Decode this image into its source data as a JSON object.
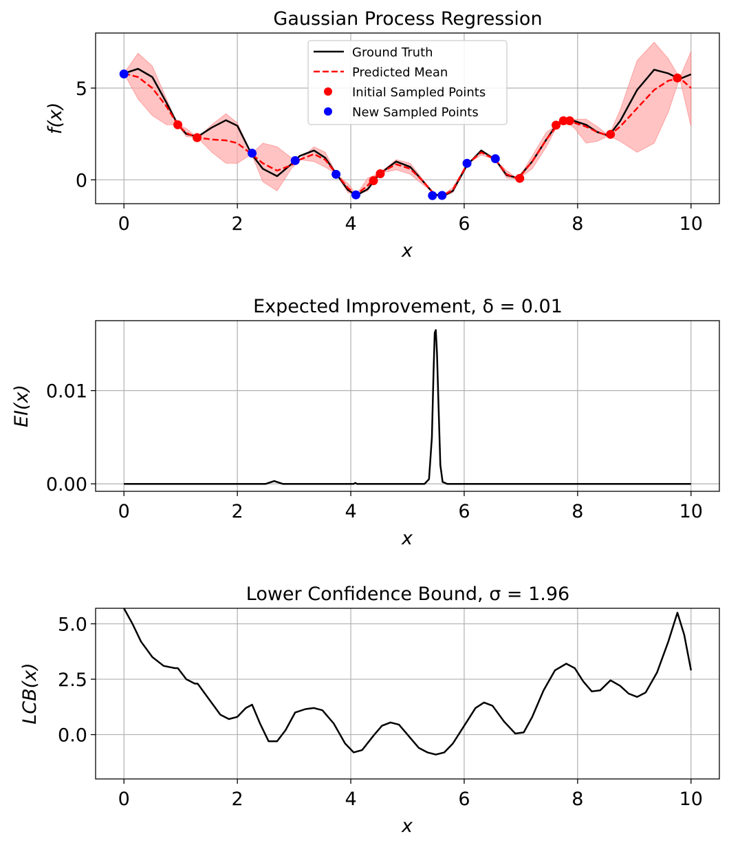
{
  "figure": {
    "panels": [
      {
        "title": "Gaussian Process Regression",
        "xlabel": "x",
        "ylabel": "f(x)",
        "xlim": [
          -0.5,
          10.5
        ],
        "ylim": [
          -1.3,
          8.0
        ],
        "xticks": [
          0,
          2,
          4,
          6,
          8,
          10
        ],
        "xtick_labels": [
          "0",
          "2",
          "4",
          "6",
          "8",
          "10"
        ],
        "yticks": [
          0,
          5
        ],
        "ytick_labels": [
          "0",
          "5"
        ]
      },
      {
        "title": "Expected Improvement, δ = 0.01",
        "xlabel": "x",
        "ylabel": "EI(x)",
        "xlim": [
          -0.5,
          10.5
        ],
        "ylim": [
          -0.0008,
          0.0175
        ],
        "xticks": [
          0,
          2,
          4,
          6,
          8,
          10
        ],
        "xtick_labels": [
          "0",
          "2",
          "4",
          "6",
          "8",
          "10"
        ],
        "yticks": [
          0.0,
          0.01
        ],
        "ytick_labels": [
          "0.00",
          "0.01"
        ]
      },
      {
        "title": "Lower Confidence Bound, σ = 1.96",
        "xlabel": "x",
        "ylabel": "LCB(x)",
        "xlim": [
          -0.5,
          10.5
        ],
        "ylim": [
          -2.0,
          5.7
        ],
        "xticks": [
          0,
          2,
          4,
          6,
          8,
          10
        ],
        "xtick_labels": [
          "0",
          "2",
          "4",
          "6",
          "8",
          "10"
        ],
        "yticks": [
          0.0,
          2.5,
          5.0
        ],
        "ytick_labels": [
          "0.0",
          "2.5",
          "5.0"
        ]
      }
    ],
    "legend": {
      "placement": "upper-center",
      "entries": [
        "Ground Truth",
        "Predicted Mean",
        "Initial Sampled Points",
        "New Sampled Points"
      ]
    },
    "colors": {
      "ground_truth": "#000000",
      "predicted_mean": "#ff0000",
      "confidence_band": "#ffaaaa",
      "initial_points": "#ff0000",
      "new_points": "#0000ff",
      "grid": "#b0b0b0"
    }
  },
  "chart_data": [
    {
      "type": "line",
      "title": "Gaussian Process Regression",
      "xlabel": "x",
      "ylabel": "f(x)",
      "xlim": [
        -0.5,
        10.5
      ],
      "ylim": [
        -1.3,
        8.0
      ],
      "grid": true,
      "legend": "upper-center",
      "series": [
        {
          "name": "Ground Truth",
          "style": "solid",
          "x": [
            0,
            0.25,
            0.5,
            0.75,
            0.95,
            1.1,
            1.3,
            1.55,
            1.8,
            2.0,
            2.25,
            2.45,
            2.7,
            2.95,
            3.1,
            3.35,
            3.55,
            3.75,
            3.95,
            4.1,
            4.3,
            4.5,
            4.8,
            5.05,
            5.25,
            5.45,
            5.6,
            5.8,
            6.05,
            6.3,
            6.55,
            6.75,
            6.95,
            7.2,
            7.45,
            7.65,
            7.8,
            7.95,
            8.15,
            8.35,
            8.55,
            8.75,
            9.05,
            9.35,
            9.6,
            9.8,
            10.0
          ],
          "values": [
            5.8,
            6.05,
            5.6,
            4.2,
            3.0,
            2.5,
            2.35,
            2.85,
            3.25,
            2.95,
            1.4,
            0.6,
            0.2,
            0.85,
            1.3,
            1.6,
            1.2,
            0.3,
            -0.55,
            -0.85,
            -0.5,
            0.3,
            1.0,
            0.7,
            0.0,
            -0.7,
            -0.95,
            -0.6,
            0.8,
            1.6,
            1.1,
            0.25,
            0.1,
            1.0,
            2.2,
            3.1,
            3.3,
            3.2,
            3.0,
            2.6,
            2.4,
            3.2,
            4.9,
            6.0,
            5.8,
            5.5,
            5.75
          ]
        },
        {
          "name": "Predicted Mean",
          "style": "dashed",
          "x": [
            0,
            0.25,
            0.5,
            0.75,
            0.95,
            1.1,
            1.3,
            1.55,
            1.8,
            2.0,
            2.25,
            2.45,
            2.7,
            2.95,
            3.1,
            3.35,
            3.55,
            3.75,
            3.95,
            4.1,
            4.3,
            4.5,
            4.8,
            5.05,
            5.25,
            5.45,
            5.6,
            5.8,
            6.05,
            6.3,
            6.55,
            6.75,
            6.95,
            7.2,
            7.45,
            7.65,
            7.8,
            7.95,
            8.15,
            8.35,
            8.55,
            8.75,
            9.05,
            9.35,
            9.6,
            9.8,
            10.0
          ],
          "values": [
            5.8,
            5.6,
            5.0,
            4.0,
            3.0,
            2.55,
            2.3,
            2.2,
            2.15,
            2.0,
            1.4,
            0.9,
            0.5,
            0.8,
            1.1,
            1.4,
            1.1,
            0.3,
            -0.45,
            -0.8,
            -0.3,
            0.35,
            0.85,
            0.6,
            0.0,
            -0.7,
            -0.9,
            -0.55,
            0.85,
            1.5,
            1.1,
            0.3,
            0.05,
            1.0,
            2.2,
            3.0,
            3.2,
            3.1,
            2.9,
            2.6,
            2.4,
            2.9,
            3.9,
            4.9,
            5.4,
            5.55,
            5.0
          ]
        },
        {
          "name": "confidence band upper",
          "x": [
            0,
            0.25,
            0.5,
            0.75,
            0.95,
            1.1,
            1.3,
            1.55,
            1.8,
            2.0,
            2.25,
            2.45,
            2.7,
            2.95,
            3.1,
            3.35,
            3.55,
            3.75,
            3.95,
            4.1,
            4.3,
            4.5,
            4.8,
            5.05,
            5.25,
            5.45,
            5.6,
            5.8,
            6.05,
            6.3,
            6.55,
            6.75,
            6.95,
            7.2,
            7.45,
            7.65,
            7.8,
            7.95,
            8.15,
            8.35,
            8.55,
            8.75,
            9.05,
            9.35,
            9.6,
            9.8,
            10.0
          ],
          "values": [
            5.8,
            6.9,
            6.2,
            4.4,
            3.0,
            2.8,
            2.3,
            3.0,
            3.6,
            3.1,
            1.4,
            2.0,
            1.8,
            1.2,
            1.1,
            1.8,
            1.5,
            0.3,
            -0.2,
            -0.8,
            0.1,
            0.35,
            1.1,
            0.9,
            0.1,
            -0.7,
            -0.9,
            -0.4,
            0.85,
            1.6,
            1.1,
            0.5,
            0.05,
            1.3,
            2.6,
            3.0,
            3.2,
            3.3,
            3.3,
            2.9,
            2.4,
            3.8,
            6.5,
            7.5,
            6.6,
            5.55,
            7.0
          ]
        },
        {
          "name": "confidence band lower",
          "x": [
            0,
            0.25,
            0.5,
            0.75,
            0.95,
            1.1,
            1.3,
            1.55,
            1.8,
            2.0,
            2.25,
            2.45,
            2.7,
            2.95,
            3.1,
            3.35,
            3.55,
            3.75,
            3.95,
            4.1,
            4.3,
            4.5,
            4.8,
            5.05,
            5.25,
            5.45,
            5.6,
            5.8,
            6.05,
            6.3,
            6.55,
            6.75,
            6.95,
            7.2,
            7.45,
            7.65,
            7.8,
            7.95,
            8.15,
            8.35,
            8.55,
            8.75,
            9.05,
            9.35,
            9.6,
            9.8,
            10.0
          ],
          "values": [
            5.8,
            4.4,
            3.5,
            3.0,
            3.0,
            2.35,
            2.3,
            1.5,
            0.9,
            0.9,
            1.4,
            -0.1,
            -0.6,
            0.6,
            1.1,
            1.0,
            0.7,
            0.3,
            -0.7,
            -0.8,
            -0.6,
            0.35,
            0.55,
            0.3,
            -0.2,
            -0.7,
            -0.9,
            -0.7,
            0.85,
            1.35,
            1.1,
            0.1,
            0.05,
            0.6,
            1.8,
            3.0,
            3.2,
            2.8,
            2.0,
            2.1,
            2.4,
            2.1,
            1.5,
            2.0,
            3.7,
            5.55,
            2.9
          ]
        },
        {
          "name": "Initial Sampled Points",
          "marker": "circle",
          "x": [
            0.95,
            1.29,
            4.4,
            4.52,
            6.98,
            7.62,
            7.75,
            7.86,
            8.58,
            9.76
          ],
          "values": [
            3.0,
            2.3,
            -0.05,
            0.33,
            0.08,
            2.98,
            3.22,
            3.22,
            2.48,
            5.55
          ]
        },
        {
          "name": "New Sampled Points",
          "marker": "circle",
          "x": [
            0.0,
            2.26,
            3.02,
            3.74,
            4.09,
            5.44,
            5.61,
            6.05,
            6.55
          ],
          "values": [
            5.77,
            1.45,
            1.05,
            0.3,
            -0.82,
            -0.86,
            -0.85,
            0.9,
            1.15
          ]
        }
      ]
    },
    {
      "type": "line",
      "title": "Expected Improvement, δ = 0.01",
      "xlabel": "x",
      "ylabel": "EI(x)",
      "xlim": [
        -0.5,
        10.5
      ],
      "ylim": [
        -0.0008,
        0.0175
      ],
      "grid": true,
      "series": [
        {
          "x": [
            0,
            2.5,
            2.6,
            2.65,
            2.7,
            2.8,
            4.05,
            4.08,
            4.11,
            5.3,
            5.38,
            5.43,
            5.46,
            5.48,
            5.5,
            5.52,
            5.55,
            5.58,
            5.62,
            5.7,
            10.0
          ],
          "values": [
            0.0,
            0.0,
            0.0002,
            0.0003,
            0.0002,
            0.0,
            0.0,
            0.0001,
            0.0,
            0.0,
            0.0005,
            0.005,
            0.012,
            0.0162,
            0.0165,
            0.014,
            0.008,
            0.002,
            0.0002,
            0.0,
            0.0
          ]
        }
      ]
    },
    {
      "type": "line",
      "title": "Lower Confidence Bound, σ = 1.96",
      "xlabel": "x",
      "ylabel": "LCB(x)",
      "xlim": [
        -0.5,
        10.5
      ],
      "ylim": [
        -2.0,
        5.7
      ],
      "grid": true,
      "series": [
        {
          "x": [
            0,
            0.15,
            0.3,
            0.5,
            0.7,
            0.9,
            0.95,
            1.1,
            1.25,
            1.3,
            1.5,
            1.7,
            1.85,
            2.0,
            2.15,
            2.26,
            2.4,
            2.55,
            2.7,
            2.85,
            3.02,
            3.2,
            3.35,
            3.5,
            3.7,
            3.9,
            4.05,
            4.2,
            4.4,
            4.55,
            4.7,
            4.85,
            5.0,
            5.2,
            5.35,
            5.5,
            5.65,
            5.8,
            6.0,
            6.2,
            6.35,
            6.5,
            6.7,
            6.9,
            7.05,
            7.2,
            7.4,
            7.6,
            7.8,
            7.95,
            8.1,
            8.25,
            8.4,
            8.58,
            8.75,
            8.9,
            9.05,
            9.2,
            9.4,
            9.6,
            9.76,
            9.88,
            10.0
          ],
          "values": [
            5.7,
            5.0,
            4.2,
            3.5,
            3.1,
            3.0,
            3.0,
            2.5,
            2.3,
            2.3,
            1.6,
            0.9,
            0.7,
            0.8,
            1.2,
            1.35,
            0.5,
            -0.3,
            -0.3,
            0.2,
            1.0,
            1.15,
            1.2,
            1.1,
            0.5,
            -0.4,
            -0.8,
            -0.7,
            -0.05,
            0.4,
            0.55,
            0.45,
            0.0,
            -0.6,
            -0.8,
            -0.9,
            -0.8,
            -0.4,
            0.4,
            1.2,
            1.45,
            1.3,
            0.6,
            0.05,
            0.1,
            0.8,
            2.0,
            2.9,
            3.2,
            3.0,
            2.4,
            1.95,
            2.0,
            2.45,
            2.2,
            1.85,
            1.7,
            1.9,
            2.8,
            4.2,
            5.5,
            4.5,
            2.9
          ]
        }
      ]
    }
  ]
}
